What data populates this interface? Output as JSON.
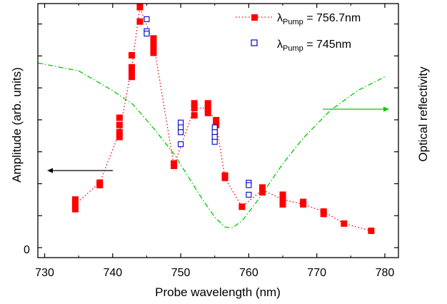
{
  "chart_data": {
    "type": "scatter",
    "xlabel": "Probe wavelength (nm)",
    "ylabel_left": "Amplitude (arb. units)",
    "ylabel_right": "Optical reflectivity",
    "xlim": [
      729,
      782
    ],
    "ylim": [
      0,
      1
    ],
    "x_ticks": [
      730,
      740,
      750,
      760,
      770,
      780
    ],
    "y_tick_labels": [
      {
        "value": 0,
        "label": "0"
      }
    ],
    "colors": {
      "pump_756": "#ff0000",
      "pump_745": "#0000cc",
      "reflectivity": "#00cc00",
      "arrow_left": "#000000",
      "arrow_right": "#00cc00"
    },
    "legend": {
      "position": "top-right",
      "entries": [
        {
          "lambda": "λ",
          "sub": "Pump",
          "value": " = 756.7nm"
        },
        {
          "lambda": "λ",
          "sub": "Pump",
          "value": " = 745nm"
        }
      ]
    },
    "series": [
      {
        "marker": "filled-square",
        "line": "dotted",
        "points": [
          [
            734.5,
            0.16
          ],
          [
            734.5,
            0.18
          ],
          [
            734.5,
            0.2
          ],
          [
            738.1,
            0.26
          ],
          [
            738.1,
            0.27
          ],
          [
            741,
            0.46
          ],
          [
            741,
            0.48
          ],
          [
            741,
            0.51
          ],
          [
            741,
            0.54
          ],
          [
            742.8,
            0.71
          ],
          [
            742.8,
            0.73
          ],
          [
            742.8,
            0.75
          ],
          [
            742.8,
            0.8
          ],
          [
            744,
            0.94
          ],
          [
            744,
            1.0
          ],
          [
            746,
            0.81
          ],
          [
            746,
            0.83
          ],
          [
            746,
            0.85
          ],
          [
            746,
            0.87
          ],
          [
            749,
            0.34
          ],
          [
            749,
            0.35
          ],
          [
            752,
            0.55
          ],
          [
            752,
            0.58
          ],
          [
            752,
            0.6
          ],
          [
            754,
            0.56
          ],
          [
            754,
            0.58
          ],
          [
            754,
            0.6
          ],
          [
            755.2,
            0.51
          ],
          [
            755.2,
            0.53
          ],
          [
            756.5,
            0.29
          ],
          [
            756.5,
            0.3
          ],
          [
            759,
            0.17
          ],
          [
            762,
            0.23
          ],
          [
            762,
            0.25
          ],
          [
            765,
            0.18
          ],
          [
            765,
            0.2
          ],
          [
            765,
            0.22
          ],
          [
            768,
            0.18
          ],
          [
            768,
            0.19
          ],
          [
            771,
            0.14
          ],
          [
            771,
            0.15
          ],
          [
            774,
            0.1
          ],
          [
            778,
            0.07
          ]
        ],
        "line_points": [
          [
            734.5,
            0.18
          ],
          [
            738.1,
            0.27
          ],
          [
            741,
            0.48
          ],
          [
            742.8,
            0.75
          ],
          [
            744,
            1.0
          ],
          [
            746,
            0.85
          ],
          [
            749,
            0.34
          ],
          [
            752,
            0.58
          ],
          [
            754,
            0.58
          ],
          [
            755.2,
            0.52
          ],
          [
            756.5,
            0.29
          ],
          [
            759,
            0.17
          ],
          [
            762,
            0.24
          ],
          [
            765,
            0.2
          ],
          [
            768,
            0.18
          ],
          [
            771,
            0.15
          ],
          [
            774,
            0.1
          ],
          [
            778,
            0.07
          ]
        ]
      },
      {
        "marker": "open-square",
        "line": "none",
        "points": [
          [
            745,
            0.95
          ],
          [
            745,
            0.9
          ],
          [
            745,
            0.89
          ],
          [
            750,
            0.52
          ],
          [
            750,
            0.5
          ],
          [
            750,
            0.48
          ],
          [
            750,
            0.43
          ],
          [
            755,
            0.5
          ],
          [
            755,
            0.48
          ],
          [
            755,
            0.46
          ],
          [
            755,
            0.44
          ],
          [
            760,
            0.27
          ],
          [
            760,
            0.26
          ],
          [
            760,
            0.22
          ]
        ]
      },
      {
        "name": "reflectivity",
        "axis": "right",
        "line": "dash-dot",
        "points": [
          [
            729,
            0.88
          ],
          [
            735,
            0.84
          ],
          [
            740,
            0.74
          ],
          [
            743,
            0.67
          ],
          [
            746,
            0.55
          ],
          [
            749,
            0.42
          ],
          [
            751,
            0.31
          ],
          [
            753,
            0.2
          ],
          [
            755,
            0.1
          ],
          [
            756.5,
            0.05
          ],
          [
            757.5,
            0.045
          ],
          [
            759,
            0.08
          ],
          [
            761,
            0.17
          ],
          [
            763,
            0.27
          ],
          [
            765,
            0.37
          ],
          [
            768,
            0.5
          ],
          [
            772,
            0.64
          ],
          [
            776,
            0.74
          ],
          [
            780,
            0.81
          ]
        ]
      }
    ]
  }
}
